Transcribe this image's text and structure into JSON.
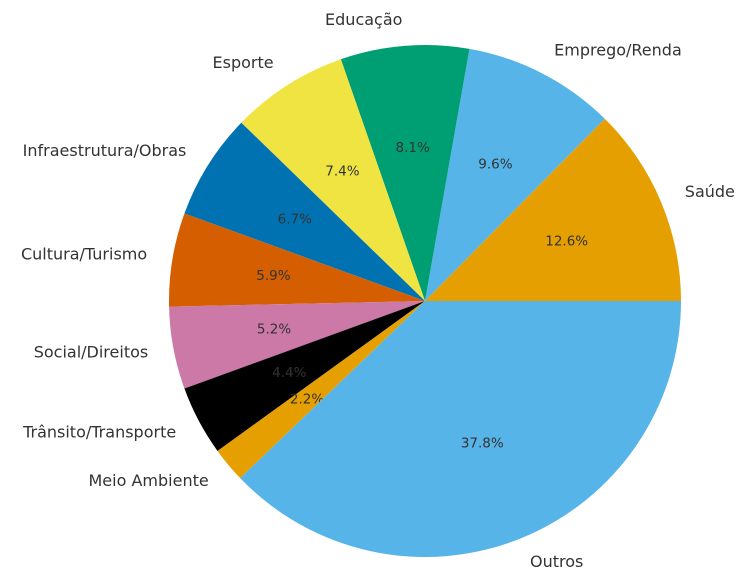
{
  "chart_data": {
    "type": "pie",
    "categories": [
      "Saúde",
      "Emprego/Renda",
      "Educação",
      "Esporte",
      "Infraestrutura/Obras",
      "Cultura/Turismo",
      "Social/Direitos",
      "Trânsito/Transporte",
      "Meio Ambiente",
      "Outros"
    ],
    "values": [
      12.6,
      9.6,
      8.1,
      7.4,
      6.7,
      5.9,
      5.2,
      4.4,
      2.2,
      37.8
    ],
    "value_labels": [
      "12.6%",
      "9.6%",
      "8.1%",
      "7.4%",
      "6.7%",
      "5.9%",
      "5.2%",
      "4.4%",
      "2.2%",
      "37.8%"
    ],
    "colors": [
      "#E69F00",
      "#56B4E9",
      "#009E73",
      "#F0E442",
      "#0072B2",
      "#D55E00",
      "#CC79A7",
      "#000000",
      "#E69F00",
      "#56B4E9"
    ]
  }
}
